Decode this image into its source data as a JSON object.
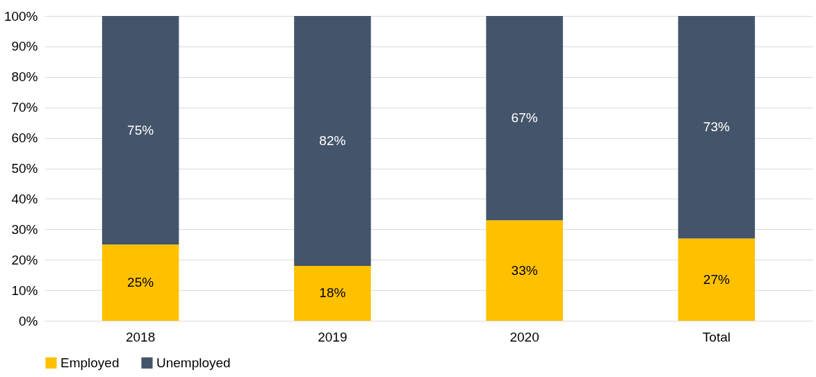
{
  "chart_data": {
    "type": "bar",
    "stacked": true,
    "categories": [
      "2018",
      "2019",
      "2020",
      "Total"
    ],
    "series": [
      {
        "name": "Employed",
        "color": "#ffc000",
        "values": [
          25,
          18,
          33,
          27
        ]
      },
      {
        "name": "Unemployed",
        "color": "#44546a",
        "values": [
          75,
          82,
          67,
          73
        ]
      }
    ],
    "ylim": [
      0,
      100
    ],
    "yticks": [
      {
        "value": 0,
        "label": "0%"
      },
      {
        "value": 10,
        "label": "10%"
      },
      {
        "value": 20,
        "label": "20%"
      },
      {
        "value": 30,
        "label": "30%"
      },
      {
        "value": 40,
        "label": "40%"
      },
      {
        "value": 50,
        "label": "50%"
      },
      {
        "value": 60,
        "label": "60%"
      },
      {
        "value": 70,
        "label": "70%"
      },
      {
        "value": 80,
        "label": "80%"
      },
      {
        "value": 90,
        "label": "90%"
      },
      {
        "value": 100,
        "label": "100%"
      }
    ],
    "value_labels": [
      [
        "25%",
        "18%",
        "33%",
        "27%"
      ],
      [
        "75%",
        "82%",
        "67%",
        "73%"
      ]
    ],
    "grid": "y",
    "legend": "bottom"
  }
}
